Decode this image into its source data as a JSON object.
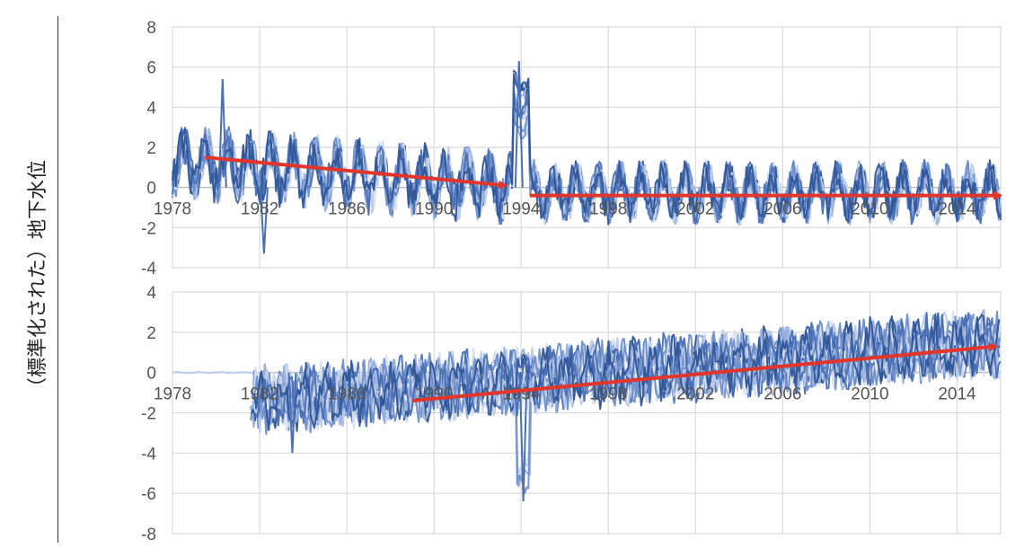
{
  "ylabel": "（標準化された）地下水位",
  "colors": {
    "series": [
      "#2f5597",
      "#4a6fb5",
      "#6f8fcb",
      "#98b0dc",
      "#bccbe8",
      "#d6dff0"
    ],
    "arrow": "#e0362c",
    "grid": "#d9d9d9"
  },
  "chart_data": [
    {
      "type": "line",
      "panel": "top",
      "x_range": [
        1978,
        2016
      ],
      "ylim": [
        -4,
        8
      ],
      "yticks": [
        "8",
        "6",
        "4",
        "2",
        "0",
        "-2",
        "-4"
      ],
      "xticks": [
        "1978",
        "1982",
        "1986",
        "1990",
        "1994",
        "1998",
        "2002",
        "2006",
        "2010",
        "2014"
      ],
      "series_count": 12,
      "notable_points": [
        {
          "year": 1993.9,
          "value": 6.3
        },
        {
          "year": 1982.2,
          "value": -3.3
        },
        {
          "year": 1980.3,
          "value": 5.4
        }
      ],
      "trend_arrows": [
        {
          "from": [
            1979.5,
            1.5
          ],
          "to": [
            1993.3,
            0.1
          ]
        },
        {
          "from": [
            1994.4,
            -0.4
          ],
          "to": [
            2016.0,
            -0.4
          ]
        }
      ]
    },
    {
      "type": "line",
      "panel": "bottom",
      "x_range": [
        1978,
        2016
      ],
      "ylim": [
        -8,
        4
      ],
      "yticks": [
        "4",
        "2",
        "0",
        "-2",
        "-4",
        "-6",
        "-8"
      ],
      "xticks": [
        "1978",
        "1982",
        "1986",
        "1990",
        "1994",
        "1998",
        "2002",
        "2006",
        "2010",
        "2014"
      ],
      "series_count": 12,
      "notable_points": [
        {
          "year": 1994.1,
          "value": -6.4
        },
        {
          "year": 1983.5,
          "value": -4.0
        },
        {
          "year": 2012.6,
          "value": 3.0
        }
      ],
      "trend_arrows": [
        {
          "from": [
            1989.0,
            -1.4
          ],
          "to": [
            2015.8,
            1.3
          ]
        }
      ]
    }
  ]
}
